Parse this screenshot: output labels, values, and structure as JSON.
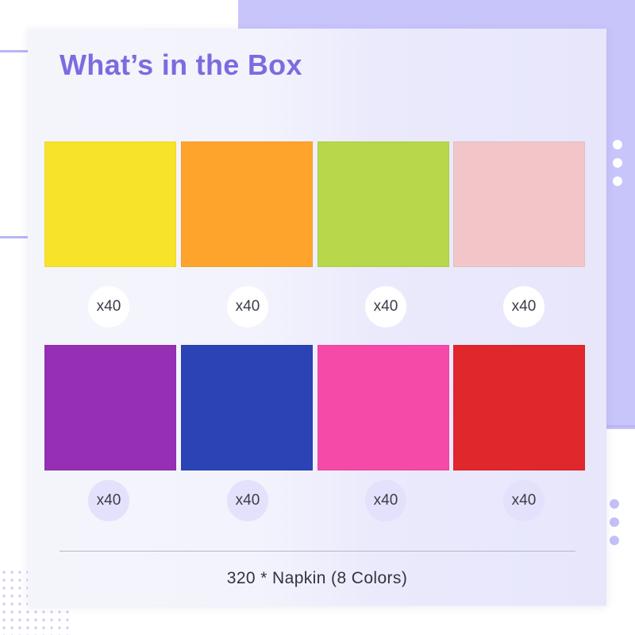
{
  "title": "What’s in the Box",
  "items": [
    {
      "color_name": "yellow",
      "hex": "#f7e42a",
      "quantity": "x40"
    },
    {
      "color_name": "orange",
      "hex": "#fea42c",
      "quantity": "x40"
    },
    {
      "color_name": "lime green",
      "hex": "#b6d84a",
      "quantity": "x40"
    },
    {
      "color_name": "light pink",
      "hex": "#f2c6c8",
      "quantity": "x40"
    },
    {
      "color_name": "purple",
      "hex": "#9530b4",
      "quantity": "x40"
    },
    {
      "color_name": "blue",
      "hex": "#2c43b6",
      "quantity": "x40"
    },
    {
      "color_name": "hot pink",
      "hex": "#f54aa8",
      "quantity": "x40"
    },
    {
      "color_name": "red",
      "hex": "#e0272b",
      "quantity": "x40"
    }
  ],
  "footer": "320 * Napkin (8 Colors)",
  "colors": {
    "accent": "#7b6cde",
    "background_panel": "#c8c5fb"
  }
}
